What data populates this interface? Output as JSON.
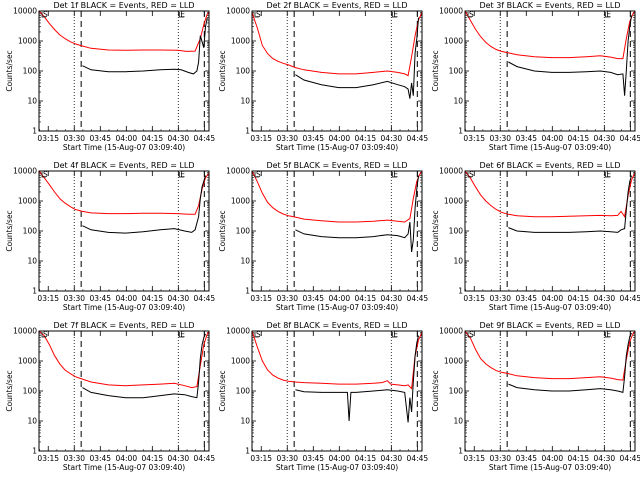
{
  "figure": {
    "panel_titles": [
      "Det 1f BLACK = Events, RED = LLD",
      "Det 2f BLACK = Events, RED = LLD",
      "Det 3f BLACK = Events, RED = LLD",
      "Det 4f BLACK = Events, RED = LLD",
      "Det 5f BLACK = Events, RED = LLD",
      "Det 6f BLACK = Events, RED = LLD",
      "Det 7f BLACK = Events, RED = LLD",
      "Det 8f BLACK = Events, RED = LLD",
      "Det 9f BLACK = Events, RED = LLD"
    ],
    "ylabel": "Counts/sec",
    "xlabel": "Start Time (15-Aug-07 03:09:40)",
    "xticks": [
      "03:15",
      "03:30",
      "03:45",
      "04:00",
      "04:15",
      "04:30",
      "04:45"
    ],
    "yticks": [
      "1",
      "10",
      "100",
      "1000",
      "10000"
    ],
    "corner_marks": [
      "S",
      "E"
    ],
    "colors": {
      "events": "#000000",
      "lld": "#ff0000",
      "axes": "#000000"
    }
  },
  "chart_data": [
    {
      "type": "line",
      "title": "Det 1f BLACK = Events, RED = LLD",
      "xlabel": "Start Time (15-Aug-07 03:09:40)",
      "ylabel": "Counts/sec",
      "x_unit": "minutes after 03:09:40",
      "xlim": [
        0,
        98
      ],
      "ylim": [
        1,
        10000
      ],
      "yscale": "log",
      "vlines_dotted": [
        20.3,
        80.3
      ],
      "vlines_dashed": [
        24.3,
        95.3
      ],
      "series": [
        {
          "name": "LLD",
          "color": "#ff0000",
          "x": [
            0,
            3,
            6,
            9,
            12,
            15,
            18,
            21,
            25,
            30,
            40,
            50,
            60,
            70,
            80,
            85,
            90,
            93,
            95,
            97,
            98
          ],
          "y": [
            10000,
            6500,
            3800,
            2400,
            1600,
            1200,
            950,
            800,
            680,
            570,
            500,
            490,
            500,
            500,
            490,
            450,
            460,
            1200,
            3500,
            8000,
            9000
          ]
        },
        {
          "name": "Events",
          "color": "#000000",
          "x": [
            25,
            30,
            40,
            50,
            60,
            70,
            78,
            82,
            86,
            89,
            91,
            92,
            93,
            95,
            96,
            97
          ],
          "y": [
            150,
            110,
            95,
            95,
            100,
            110,
            115,
            110,
            90,
            80,
            100,
            200,
            1500,
            600,
            3000,
            6000
          ]
        }
      ]
    },
    {
      "type": "line",
      "title": "Det 2f BLACK = Events, RED = LLD",
      "xlabel": "Start Time (15-Aug-07 03:09:40)",
      "ylabel": "Counts/sec",
      "x_unit": "minutes after 03:09:40",
      "xlim": [
        0,
        98
      ],
      "ylim": [
        1,
        10000
      ],
      "yscale": "log",
      "vlines_dotted": [
        20.3,
        80.3
      ],
      "vlines_dashed": [
        24.3,
        95.3
      ],
      "series": [
        {
          "name": "LLD",
          "color": "#ff0000",
          "x": [
            0,
            3,
            6,
            9,
            12,
            15,
            18,
            21,
            25,
            30,
            40,
            50,
            60,
            70,
            78,
            84,
            88,
            90,
            92,
            94,
            96,
            98
          ],
          "y": [
            9000,
            2800,
            700,
            380,
            260,
            210,
            180,
            160,
            130,
            110,
            90,
            80,
            80,
            90,
            100,
            90,
            80,
            70,
            300,
            1500,
            5000,
            9000
          ]
        },
        {
          "name": "Events",
          "color": "#000000",
          "x": [
            25,
            30,
            40,
            50,
            60,
            70,
            78,
            84,
            88,
            90,
            91,
            92,
            93,
            94,
            95,
            96
          ],
          "y": [
            75,
            50,
            35,
            28,
            28,
            35,
            45,
            35,
            30,
            25,
            12,
            40,
            15,
            400,
            1200,
            6000
          ]
        }
      ]
    },
    {
      "type": "line",
      "title": "Det 3f BLACK = Events, RED = LLD",
      "xlabel": "Start Time (15-Aug-07 03:09:40)",
      "ylabel": "Counts/sec",
      "x_unit": "minutes after 03:09:40",
      "xlim": [
        0,
        98
      ],
      "ylim": [
        1,
        10000
      ],
      "yscale": "log",
      "vlines_dotted": [
        20.3,
        80.3
      ],
      "vlines_dashed": [
        24.3,
        95.3
      ],
      "series": [
        {
          "name": "LLD",
          "color": "#ff0000",
          "x": [
            0,
            3,
            6,
            9,
            12,
            15,
            18,
            21,
            25,
            30,
            40,
            50,
            60,
            70,
            78,
            84,
            88,
            91,
            93,
            95,
            97,
            98
          ],
          "y": [
            10000,
            5000,
            2500,
            1400,
            900,
            650,
            520,
            450,
            400,
            350,
            300,
            280,
            280,
            300,
            320,
            290,
            260,
            260,
            1200,
            4500,
            8500,
            9500
          ]
        },
        {
          "name": "Events",
          "color": "#000000",
          "x": [
            25,
            30,
            40,
            50,
            60,
            70,
            78,
            84,
            88,
            91,
            92,
            93,
            94,
            95,
            96
          ],
          "y": [
            200,
            140,
            100,
            90,
            90,
            95,
            100,
            90,
            75,
            80,
            15,
            100,
            1000,
            3000,
            7000
          ]
        }
      ]
    },
    {
      "type": "line",
      "title": "Det 4f BLACK = Events, RED = LLD",
      "xlabel": "Start Time (15-Aug-07 03:09:40)",
      "ylabel": "Counts/sec",
      "x_unit": "minutes after 03:09:40",
      "xlim": [
        0,
        98
      ],
      "ylim": [
        1,
        10000
      ],
      "yscale": "log",
      "vlines_dotted": [
        20.3,
        80.3
      ],
      "vlines_dashed": [
        24.3,
        95.3
      ],
      "series": [
        {
          "name": "LLD",
          "color": "#ff0000",
          "x": [
            0,
            3,
            6,
            9,
            12,
            15,
            18,
            21,
            25,
            30,
            40,
            50,
            60,
            70,
            80,
            86,
            90,
            92,
            94,
            96,
            98
          ],
          "y": [
            10000,
            6000,
            3500,
            2000,
            1200,
            850,
            650,
            520,
            450,
            400,
            380,
            380,
            390,
            390,
            380,
            360,
            360,
            700,
            2500,
            6000,
            8500
          ]
        },
        {
          "name": "Events",
          "color": "#000000",
          "x": [
            25,
            30,
            40,
            50,
            60,
            70,
            78,
            84,
            88,
            90,
            92,
            93,
            94,
            96
          ],
          "y": [
            150,
            110,
            90,
            85,
            95,
            110,
            120,
            100,
            90,
            110,
            300,
            1200,
            3000,
            7000
          ]
        }
      ]
    },
    {
      "type": "line",
      "title": "Det 5f BLACK = Events, RED = LLD",
      "xlabel": "Start Time (15-Aug-07 03:09:40)",
      "ylabel": "Counts/sec",
      "x_unit": "minutes after 03:09:40",
      "xlim": [
        0,
        98
      ],
      "ylim": [
        1,
        10000
      ],
      "yscale": "log",
      "vlines_dotted": [
        20.3,
        80.3
      ],
      "vlines_dashed": [
        24.3,
        95.3
      ],
      "series": [
        {
          "name": "LLD",
          "color": "#ff0000",
          "x": [
            0,
            3,
            6,
            9,
            12,
            15,
            18,
            21,
            25,
            30,
            40,
            50,
            60,
            70,
            78,
            84,
            88,
            91,
            93,
            95,
            97,
            98
          ],
          "y": [
            10000,
            4500,
            1800,
            900,
            600,
            450,
            370,
            320,
            290,
            250,
            220,
            200,
            200,
            210,
            230,
            210,
            200,
            260,
            1200,
            4500,
            8500,
            9500
          ]
        },
        {
          "name": "Events",
          "color": "#000000",
          "x": [
            25,
            30,
            40,
            50,
            60,
            70,
            78,
            84,
            88,
            90,
            91,
            92,
            93,
            94,
            95,
            96
          ],
          "y": [
            110,
            80,
            65,
            60,
            60,
            65,
            75,
            70,
            60,
            80,
            200,
            20,
            50,
            600,
            2500,
            7000
          ]
        }
      ]
    },
    {
      "type": "line",
      "title": "Det 6f BLACK = Events, RED = LLD",
      "xlabel": "Start Time (15-Aug-07 03:09:40)",
      "ylabel": "Counts/sec",
      "x_unit": "minutes after 03:09:40",
      "xlim": [
        0,
        98
      ],
      "ylim": [
        1,
        10000
      ],
      "yscale": "log",
      "vlines_dotted": [
        20.3,
        80.3
      ],
      "vlines_dashed": [
        24.3,
        95.3
      ],
      "series": [
        {
          "name": "LLD",
          "color": "#ff0000",
          "x": [
            0,
            3,
            6,
            9,
            12,
            15,
            18,
            21,
            25,
            30,
            40,
            50,
            60,
            70,
            78,
            84,
            88,
            90,
            92,
            94,
            96,
            98
          ],
          "y": [
            10000,
            6000,
            3000,
            1600,
            1000,
            700,
            520,
            420,
            360,
            320,
            300,
            300,
            310,
            320,
            330,
            320,
            330,
            450,
            300,
            1500,
            5000,
            9000
          ]
        },
        {
          "name": "Events",
          "color": "#000000",
          "x": [
            25,
            30,
            40,
            50,
            60,
            70,
            78,
            84,
            88,
            90,
            92,
            93,
            94,
            95,
            96
          ],
          "y": [
            130,
            100,
            90,
            90,
            90,
            95,
            100,
            95,
            90,
            110,
            120,
            500,
            2000,
            4500,
            7000
          ]
        }
      ]
    },
    {
      "type": "line",
      "title": "Det 7f BLACK = Events, RED = LLD",
      "xlabel": "Start Time (15-Aug-07 03:09:40)",
      "ylabel": "Counts/sec",
      "x_unit": "minutes after 03:09:40",
      "xlim": [
        0,
        98
      ],
      "ylim": [
        1,
        10000
      ],
      "yscale": "log",
      "vlines_dotted": [
        20.3,
        80.3
      ],
      "vlines_dashed": [
        24.3,
        95.3
      ],
      "series": [
        {
          "name": "LLD",
          "color": "#ff0000",
          "x": [
            0,
            3,
            6,
            9,
            12,
            15,
            18,
            21,
            25,
            30,
            40,
            50,
            60,
            70,
            78,
            84,
            88,
            91,
            93,
            95,
            97,
            98
          ],
          "y": [
            10000,
            7000,
            3500,
            1500,
            800,
            500,
            380,
            300,
            250,
            200,
            160,
            150,
            160,
            170,
            180,
            150,
            130,
            140,
            700,
            3500,
            8000,
            9500
          ]
        },
        {
          "name": "Events",
          "color": "#000000",
          "x": [
            25,
            30,
            40,
            50,
            60,
            70,
            78,
            84,
            88,
            91,
            92,
            93,
            94,
            95,
            96
          ],
          "y": [
            130,
            90,
            70,
            60,
            60,
            70,
            80,
            75,
            65,
            60,
            200,
            1200,
            3500,
            6000,
            8000
          ]
        }
      ]
    },
    {
      "type": "line",
      "title": "Det 8f BLACK = Events, RED = LLD",
      "xlabel": "Start Time (15-Aug-07 03:09:40)",
      "ylabel": "Counts/sec",
      "x_unit": "minutes after 03:09:40",
      "xlim": [
        0,
        98
      ],
      "ylim": [
        1,
        10000
      ],
      "yscale": "log",
      "vlines_dotted": [
        20.3,
        80.3
      ],
      "vlines_dashed": [
        24.3,
        95.3
      ],
      "series": [
        {
          "name": "LLD",
          "color": "#ff0000",
          "x": [
            0,
            3,
            6,
            9,
            12,
            15,
            18,
            21,
            25,
            30,
            40,
            50,
            60,
            70,
            75,
            78,
            80,
            84,
            88,
            90,
            92,
            94,
            96,
            98
          ],
          "y": [
            10000,
            3000,
            1000,
            500,
            340,
            270,
            230,
            210,
            200,
            190,
            180,
            170,
            170,
            180,
            190,
            220,
            170,
            160,
            150,
            160,
            120,
            1500,
            5000,
            9000
          ]
        },
        {
          "name": "Events",
          "color": "#000000",
          "x": [
            25,
            30,
            40,
            50,
            55,
            56,
            57,
            60,
            70,
            78,
            84,
            88,
            90,
            91,
            92,
            93,
            94,
            95,
            96
          ],
          "y": [
            110,
            95,
            90,
            90,
            90,
            10,
            90,
            90,
            100,
            110,
            100,
            90,
            9,
            60,
            20,
            200,
            1500,
            4000,
            7000
          ]
        }
      ]
    },
    {
      "type": "line",
      "title": "Det 9f BLACK = Events, RED = LLD",
      "xlabel": "Start Time (15-Aug-07 03:09:40)",
      "ylabel": "Counts/sec",
      "x_unit": "minutes after 03:09:40",
      "xlim": [
        0,
        98
      ],
      "ylim": [
        1,
        10000
      ],
      "yscale": "log",
      "vlines_dotted": [
        20.3,
        80.3
      ],
      "vlines_dashed": [
        24.3,
        95.3
      ],
      "series": [
        {
          "name": "LLD",
          "color": "#ff0000",
          "x": [
            0,
            3,
            6,
            9,
            12,
            15,
            18,
            21,
            25,
            30,
            40,
            50,
            60,
            70,
            78,
            84,
            88,
            91,
            93,
            95,
            97,
            98
          ],
          "y": [
            10000,
            6000,
            2500,
            1200,
            800,
            600,
            480,
            420,
            380,
            320,
            280,
            260,
            260,
            280,
            300,
            270,
            240,
            230,
            1100,
            4500,
            8500,
            9500
          ]
        },
        {
          "name": "Events",
          "color": "#000000",
          "x": [
            25,
            30,
            40,
            50,
            60,
            70,
            78,
            84,
            88,
            91,
            92,
            93,
            94,
            95,
            96
          ],
          "y": [
            170,
            130,
            110,
            100,
            100,
            110,
            120,
            110,
            100,
            90,
            300,
            1500,
            3500,
            6500,
            8500
          ]
        }
      ]
    }
  ]
}
